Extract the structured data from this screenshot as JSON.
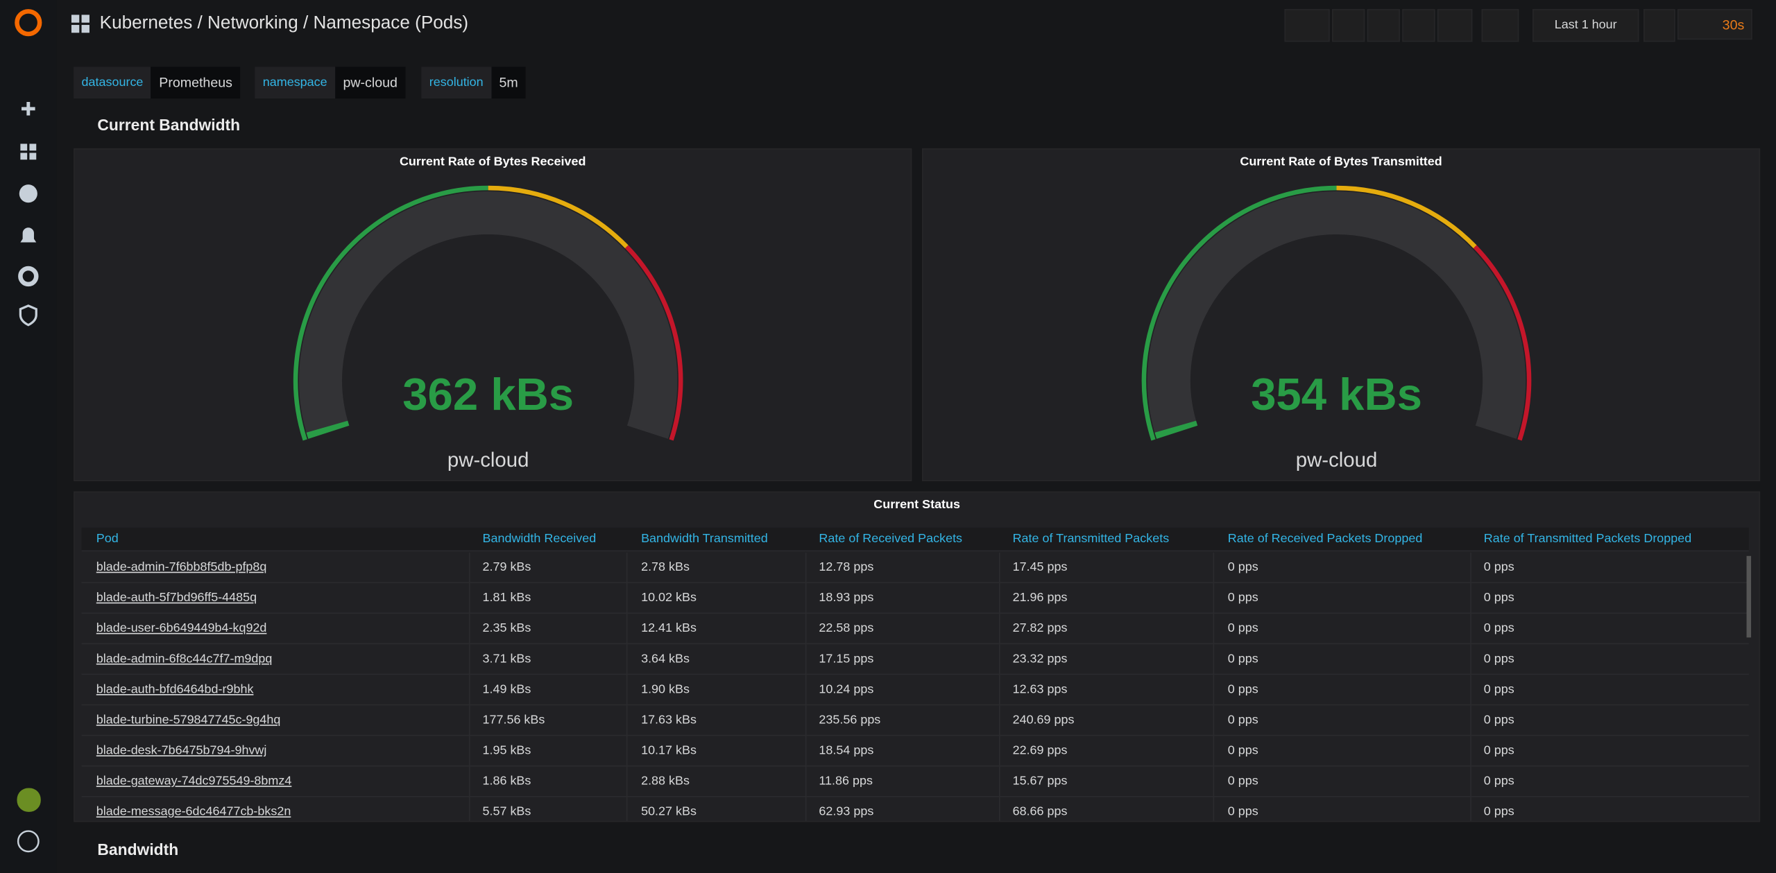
{
  "header": {
    "breadcrumb": "Kubernetes / Networking / Namespace (Pods)",
    "time_range": "Last 1 hour",
    "refresh": "30s"
  },
  "variables": [
    {
      "label": "datasource",
      "value": "Prometheus"
    },
    {
      "label": "namespace",
      "value": "pw-cloud"
    },
    {
      "label": "resolution",
      "value": "5m"
    }
  ],
  "rows": [
    "Current Bandwidth",
    "Bandwidth"
  ],
  "gauges": [
    {
      "title": "Current Rate of Bytes Received",
      "value": "362 kBs",
      "label": "pw-cloud"
    },
    {
      "title": "Current Rate of Bytes Transmitted",
      "value": "354 kBs",
      "label": "pw-cloud"
    }
  ],
  "table": {
    "title": "Current Status",
    "columns": [
      "Pod",
      "Bandwidth Received",
      "Bandwidth Transmitted",
      "Rate of Received Packets",
      "Rate of Transmitted Packets",
      "Rate of Received Packets Dropped",
      "Rate of Transmitted Packets Dropped"
    ],
    "rows": [
      [
        "blade-admin-7f6bb8f5db-pfp8q",
        "2.79 kBs",
        "2.78 kBs",
        "12.78 pps",
        "17.45 pps",
        "0 pps",
        "0 pps"
      ],
      [
        "blade-auth-5f7bd96ff5-4485q",
        "1.81 kBs",
        "10.02 kBs",
        "18.93 pps",
        "21.96 pps",
        "0 pps",
        "0 pps"
      ],
      [
        "blade-user-6b649449b4-kq92d",
        "2.35 kBs",
        "12.41 kBs",
        "22.58 pps",
        "27.82 pps",
        "0 pps",
        "0 pps"
      ],
      [
        "blade-admin-6f8c44c7f7-m9dpq",
        "3.71 kBs",
        "3.64 kBs",
        "17.15 pps",
        "23.32 pps",
        "0 pps",
        "0 pps"
      ],
      [
        "blade-auth-bfd6464bd-r9bhk",
        "1.49 kBs",
        "1.90 kBs",
        "10.24 pps",
        "12.63 pps",
        "0 pps",
        "0 pps"
      ],
      [
        "blade-turbine-579847745c-9g4hq",
        "177.56 kBs",
        "17.63 kBs",
        "235.56 pps",
        "240.69 pps",
        "0 pps",
        "0 pps"
      ],
      [
        "blade-desk-7b6475b794-9hvwj",
        "1.95 kBs",
        "10.17 kBs",
        "18.54 pps",
        "22.69 pps",
        "0 pps",
        "0 pps"
      ],
      [
        "blade-gateway-74dc975549-8bmz4",
        "1.86 kBs",
        "2.88 kBs",
        "11.86 pps",
        "15.67 pps",
        "0 pps",
        "0 pps"
      ],
      [
        "blade-message-6dc46477cb-bks2n",
        "5.57 kBs",
        "50.27 kBs",
        "62.93 pps",
        "68.66 pps",
        "0 pps",
        "0 pps"
      ]
    ]
  }
}
